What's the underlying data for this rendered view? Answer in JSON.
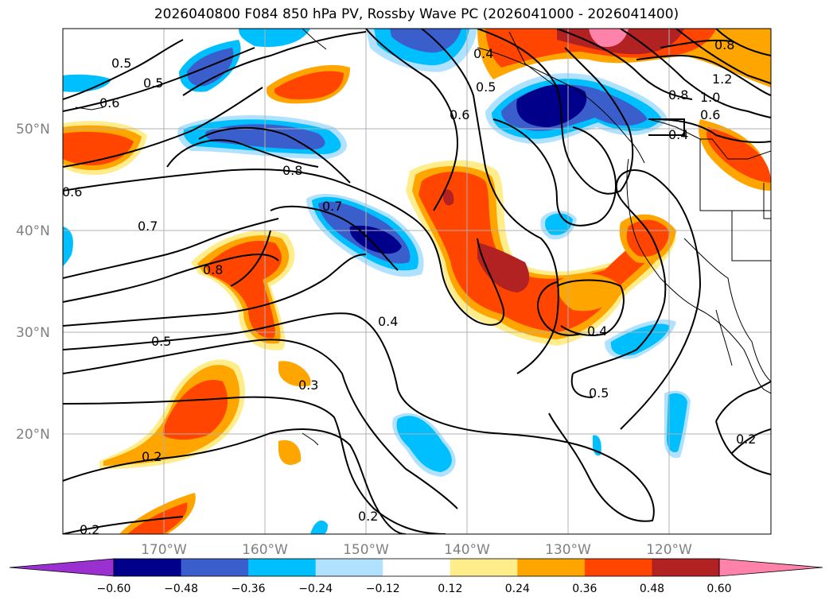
{
  "title": "2026040800 F084 850 hPa PV, Rossby Wave PC (2026041000 - 2026041400)",
  "lat_labels": [
    "50°N",
    "40°N",
    "30°N",
    "20°N"
  ],
  "lon_labels": [
    "170°W",
    "160°W",
    "150°W",
    "140°W",
    "130°W",
    "120°W"
  ],
  "colorbar": {
    "labels": [
      "−0.60",
      "−0.48",
      "−0.36",
      "−0.24",
      "−0.12",
      "0.12",
      "0.24",
      "0.36",
      "0.48",
      "0.60"
    ],
    "colors": [
      "#9b30d0",
      "#00008b",
      "#3a5fcd",
      "#00bfff",
      "#b0e2ff",
      "#ffffff",
      "#ffec8b",
      "#ffa500",
      "#ff4500",
      "#b22222",
      "#ff82ab",
      "#ff82ab"
    ]
  },
  "contour_labels": [
    "0.5",
    "0.5",
    "0.6",
    "0.6",
    "0.8",
    "0.7",
    "0.7",
    "0.8",
    "0.5",
    "0.4",
    "0.3",
    "0.2",
    "0.2",
    "0.2",
    "0.4",
    "0.5",
    "0.6",
    "0.4",
    "0.5",
    "0.4",
    "1.0",
    "1.2",
    "0.8",
    "0.6",
    "0.2",
    "0.8"
  ]
}
